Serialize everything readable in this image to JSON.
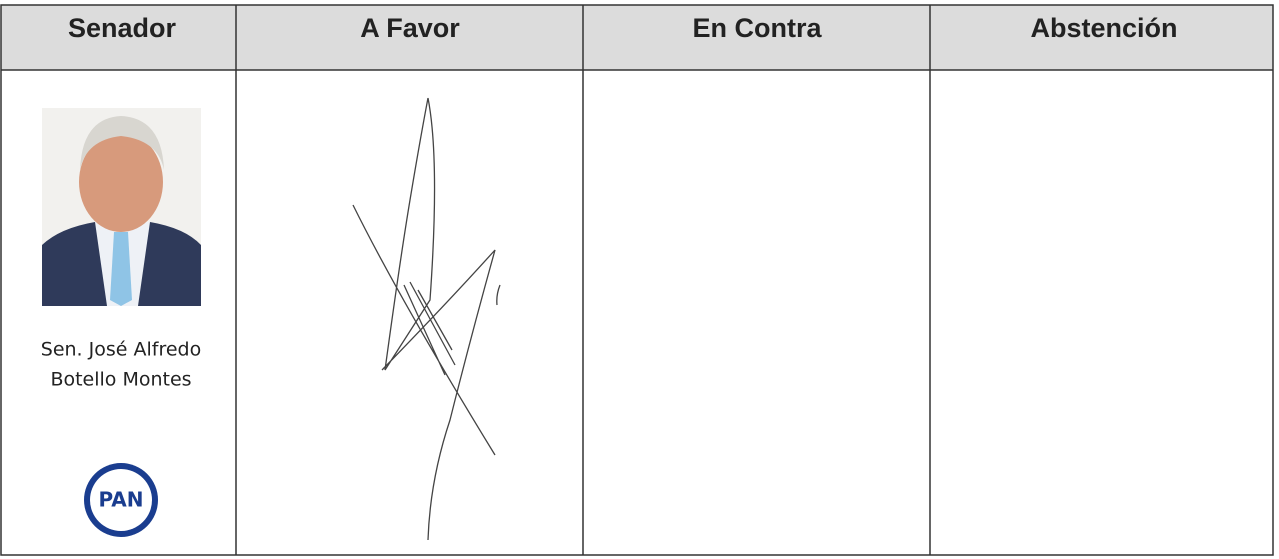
{
  "table": {
    "headers": [
      "Senador",
      "A Favor",
      "En Contra",
      "Abstención"
    ],
    "rows": [
      {
        "senator_name": [
          "Sen. José Alfredo",
          "Botello Montes"
        ],
        "party": "PAN"
      }
    ]
  }
}
